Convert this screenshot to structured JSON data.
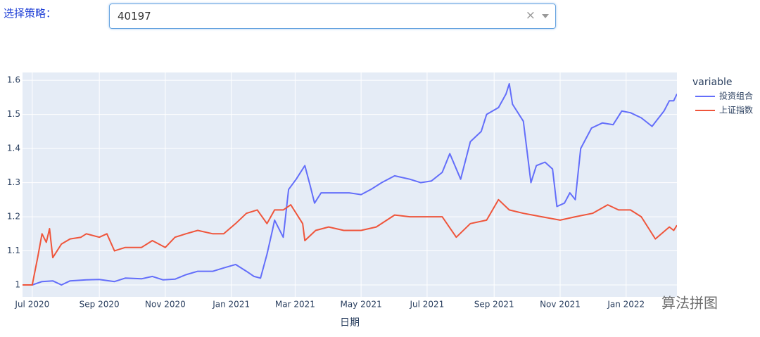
{
  "control": {
    "label": "选择策略：",
    "value": "40197"
  },
  "watermark": "算法拼图",
  "chart_data": {
    "type": "line",
    "x_label": "日期",
    "legend_title": "variable",
    "legend": "right",
    "grid": true,
    "background": "#e5ecf6",
    "xlim": [
      "2020-06-22",
      "2022-02-17"
    ],
    "xticks": [
      {
        "value": "2020-07-01",
        "label": "Jul 2020"
      },
      {
        "value": "2020-09-01",
        "label": "Sep 2020"
      },
      {
        "value": "2020-11-01",
        "label": "Nov 2020"
      },
      {
        "value": "2021-01-01",
        "label": "Jan 2021"
      },
      {
        "value": "2021-03-01",
        "label": "Mar 2021"
      },
      {
        "value": "2021-05-01",
        "label": "May 2021"
      },
      {
        "value": "2021-07-01",
        "label": "Jul 2021"
      },
      {
        "value": "2021-09-01",
        "label": "Sep 2021"
      },
      {
        "value": "2021-11-01",
        "label": "Nov 2021"
      },
      {
        "value": "2022-01-01",
        "label": "Jan 2022"
      }
    ],
    "ylim": [
      0.965,
      1.623
    ],
    "yticks": [
      1,
      1.1,
      1.2,
      1.3,
      1.4,
      1.5,
      1.6
    ],
    "series": [
      {
        "name": "投资组合",
        "color": "#636efa",
        "x": [
          "2020-06-22",
          "2020-07-01",
          "2020-07-10",
          "2020-07-20",
          "2020-07-28",
          "2020-08-05",
          "2020-08-20",
          "2020-09-01",
          "2020-09-15",
          "2020-09-25",
          "2020-10-10",
          "2020-10-20",
          "2020-10-30",
          "2020-11-10",
          "2020-11-20",
          "2020-12-01",
          "2020-12-15",
          "2020-12-25",
          "2021-01-05",
          "2021-01-15",
          "2021-01-22",
          "2021-01-28",
          "2021-02-03",
          "2021-02-08",
          "2021-02-10",
          "2021-02-18",
          "2021-02-23",
          "2021-03-02",
          "2021-03-10",
          "2021-03-15",
          "2021-03-19",
          "2021-03-25",
          "2021-04-05",
          "2021-04-20",
          "2021-05-01",
          "2021-05-10",
          "2021-05-20",
          "2021-06-01",
          "2021-06-15",
          "2021-06-25",
          "2021-07-05",
          "2021-07-15",
          "2021-07-22",
          "2021-08-01",
          "2021-08-10",
          "2021-08-20",
          "2021-08-25",
          "2021-09-05",
          "2021-09-12",
          "2021-09-15",
          "2021-09-18",
          "2021-09-28",
          "2021-10-05",
          "2021-10-10",
          "2021-10-18",
          "2021-10-25",
          "2021-10-29",
          "2021-11-05",
          "2021-11-10",
          "2021-11-15",
          "2021-11-20",
          "2021-11-30",
          "2021-12-10",
          "2021-12-20",
          "2021-12-28",
          "2022-01-05",
          "2022-01-15",
          "2022-01-25",
          "2022-02-05",
          "2022-02-10",
          "2022-02-14",
          "2022-02-17"
        ],
        "values": [
          1.0,
          1.0,
          1.01,
          1.012,
          1.0,
          1.012,
          1.015,
          1.016,
          1.01,
          1.02,
          1.018,
          1.025,
          1.015,
          1.017,
          1.03,
          1.04,
          1.04,
          1.05,
          1.06,
          1.04,
          1.025,
          1.02,
          1.09,
          1.16,
          1.19,
          1.14,
          1.28,
          1.31,
          1.35,
          1.29,
          1.24,
          1.27,
          1.27,
          1.27,
          1.265,
          1.28,
          1.3,
          1.32,
          1.31,
          1.3,
          1.305,
          1.33,
          1.385,
          1.31,
          1.42,
          1.45,
          1.5,
          1.52,
          1.56,
          1.59,
          1.53,
          1.48,
          1.3,
          1.35,
          1.36,
          1.34,
          1.23,
          1.24,
          1.27,
          1.25,
          1.4,
          1.46,
          1.475,
          1.47,
          1.51,
          1.505,
          1.49,
          1.465,
          1.51,
          1.54,
          1.54,
          1.56
        ]
      },
      {
        "name": "上证指数",
        "color": "#ef553b",
        "x": [
          "2020-06-22",
          "2020-07-01",
          "2020-07-06",
          "2020-07-10",
          "2020-07-14",
          "2020-07-17",
          "2020-07-20",
          "2020-07-28",
          "2020-08-05",
          "2020-08-15",
          "2020-08-20",
          "2020-09-01",
          "2020-09-08",
          "2020-09-15",
          "2020-09-25",
          "2020-10-10",
          "2020-10-20",
          "2020-11-01",
          "2020-11-10",
          "2020-11-20",
          "2020-12-01",
          "2020-12-15",
          "2020-12-25",
          "2021-01-05",
          "2021-01-15",
          "2021-01-25",
          "2021-02-03",
          "2021-02-10",
          "2021-02-18",
          "2021-02-25",
          "2021-03-08",
          "2021-03-10",
          "2021-03-20",
          "2021-04-01",
          "2021-04-15",
          "2021-05-01",
          "2021-05-15",
          "2021-06-01",
          "2021-06-15",
          "2021-07-01",
          "2021-07-15",
          "2021-07-28",
          "2021-08-10",
          "2021-08-25",
          "2021-09-05",
          "2021-09-15",
          "2021-09-28",
          "2021-10-15",
          "2021-11-01",
          "2021-11-15",
          "2021-12-01",
          "2021-12-15",
          "2021-12-25",
          "2022-01-05",
          "2022-01-15",
          "2022-01-28",
          "2022-02-10",
          "2022-02-14",
          "2022-02-17"
        ],
        "values": [
          1.0,
          1.0,
          1.08,
          1.15,
          1.125,
          1.165,
          1.08,
          1.12,
          1.135,
          1.14,
          1.15,
          1.14,
          1.15,
          1.1,
          1.11,
          1.11,
          1.13,
          1.11,
          1.14,
          1.15,
          1.16,
          1.15,
          1.15,
          1.18,
          1.21,
          1.22,
          1.18,
          1.22,
          1.22,
          1.235,
          1.18,
          1.13,
          1.16,
          1.17,
          1.16,
          1.16,
          1.17,
          1.205,
          1.2,
          1.2,
          1.2,
          1.14,
          1.18,
          1.19,
          1.25,
          1.22,
          1.21,
          1.2,
          1.19,
          1.2,
          1.21,
          1.235,
          1.22,
          1.22,
          1.2,
          1.135,
          1.17,
          1.16,
          1.175
        ]
      }
    ]
  }
}
